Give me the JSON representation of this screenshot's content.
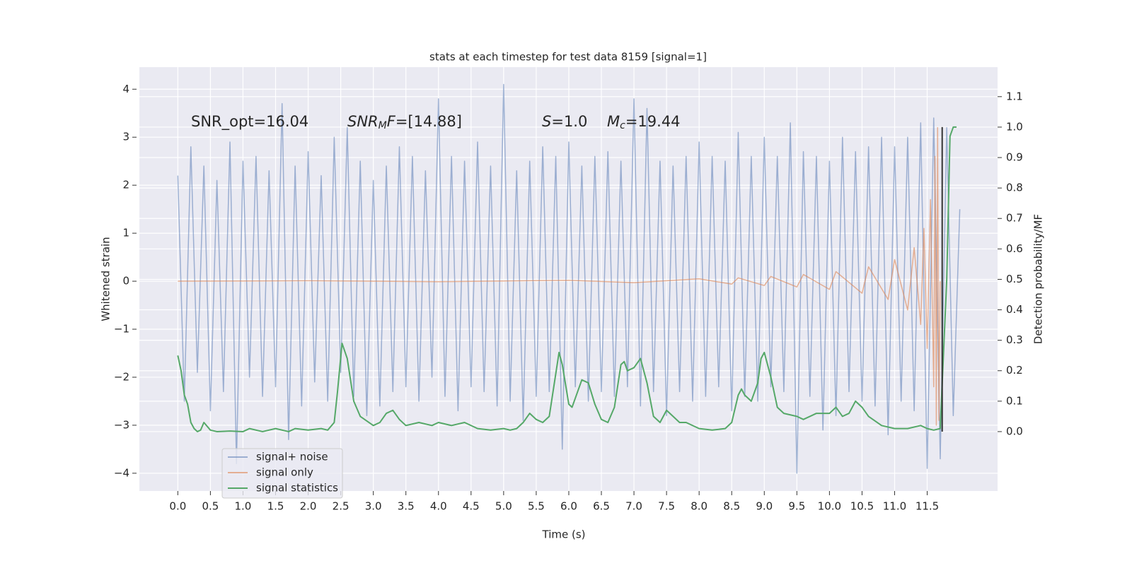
{
  "chart_data": {
    "type": "line",
    "title": "stats at each timestep for test data 8159 [signal=1]",
    "xlabel": "Time (s)",
    "ylabel": "Whitened strain",
    "y2label": "Detection probability/MF",
    "xlim": [
      -0.59,
      12.58
    ],
    "ylim": [
      -4.37,
      4.46
    ],
    "y2lim": [
      -0.195,
      1.197
    ],
    "xticks": [
      {
        "value": 0,
        "label": "0.0"
      },
      0.5,
      {
        "value": 1,
        "label": "1.0"
      },
      1.5,
      {
        "value": 2,
        "label": "2.0"
      },
      2.5,
      {
        "value": 3,
        "label": "3.0"
      },
      3.5,
      {
        "value": 4,
        "label": "4.0"
      },
      4.5,
      {
        "value": 5,
        "label": "5.0"
      },
      5.5,
      {
        "value": 6,
        "label": "6.0"
      },
      6.5,
      {
        "value": 7,
        "label": "7.0"
      },
      7.5,
      {
        "value": 8,
        "label": "8.0"
      },
      8.5,
      {
        "value": 9,
        "label": "9.0"
      },
      9.5,
      {
        "value": 10,
        "label": "10.0"
      },
      10.5,
      {
        "value": 11,
        "label": "11.0"
      },
      11.5
    ],
    "yticks": [
      {
        "value": -4,
        "label": "−4"
      },
      {
        "value": -3,
        "label": "−3"
      },
      {
        "value": -2,
        "label": "−2"
      },
      {
        "value": -1,
        "label": "−1"
      },
      0,
      1,
      2,
      3,
      4
    ],
    "y2ticks": [
      {
        "value": 0,
        "label": "0.0"
      },
      0.1,
      0.2,
      0.3,
      0.4,
      0.5,
      0.6,
      0.7,
      0.8,
      0.9,
      {
        "value": 1,
        "label": "1.0"
      },
      1.1
    ],
    "grid": true,
    "legend": "lower left",
    "annotations": [
      {
        "parts": [
          {
            "text": "SNR_opt=16.04"
          }
        ]
      },
      {
        "parts": [
          {
            "text": "SNR",
            "italic": true
          },
          {
            "text": "M",
            "italic": true,
            "sub": true
          },
          {
            "text": "F",
            "italic": true
          },
          {
            "text": "=[14.88]"
          }
        ]
      },
      {
        "parts": [
          {
            "text": "S",
            "italic": true
          },
          {
            "text": "=1.0"
          }
        ]
      },
      {
        "parts": [
          {
            "text": "M",
            "italic": true
          },
          {
            "text": "c",
            "italic": true,
            "sub": true
          },
          {
            "text": "=19.44"
          }
        ]
      }
    ],
    "vline": {
      "x": 11.73,
      "ymin": 0,
      "ymax": 1,
      "axis": "y2",
      "color": "#333333"
    },
    "series": [
      {
        "name": "signal+ noise",
        "color": "#4c72b0",
        "opacity": 0.5,
        "x": [
          0,
          0.1,
          0.2,
          0.3,
          0.4,
          0.5,
          0.6,
          0.7,
          0.8,
          0.9,
          1,
          1.1,
          1.2,
          1.3,
          1.4,
          1.5,
          1.6,
          1.7,
          1.8,
          1.9,
          2,
          2.1,
          2.2,
          2.3,
          2.4,
          2.5,
          2.6,
          2.7,
          2.8,
          2.9,
          3,
          3.1,
          3.2,
          3.3,
          3.4,
          3.5,
          3.6,
          3.7,
          3.8,
          3.9,
          4,
          4.1,
          4.2,
          4.3,
          4.4,
          4.5,
          4.6,
          4.7,
          4.8,
          4.9,
          5,
          5.1,
          5.2,
          5.3,
          5.4,
          5.5,
          5.6,
          5.7,
          5.8,
          5.9,
          6,
          6.1,
          6.2,
          6.3,
          6.4,
          6.5,
          6.6,
          6.7,
          6.8,
          6.9,
          7,
          7.1,
          7.2,
          7.3,
          7.4,
          7.5,
          7.6,
          7.7,
          7.8,
          7.9,
          8,
          8.1,
          8.2,
          8.3,
          8.4,
          8.5,
          8.6,
          8.7,
          8.8,
          8.9,
          9,
          9.1,
          9.2,
          9.3,
          9.4,
          9.5,
          9.6,
          9.7,
          9.8,
          9.9,
          10,
          10.1,
          10.2,
          10.3,
          10.4,
          10.5,
          10.6,
          10.7,
          10.8,
          10.9,
          11,
          11.1,
          11.2,
          11.3,
          11.4,
          11.5,
          11.6,
          11.7,
          11.8,
          11.9,
          12
        ],
        "values": [
          2.2,
          -2.5,
          2.8,
          -1.9,
          2.4,
          -2.7,
          2.1,
          -2.3,
          2.9,
          -3.8,
          2.5,
          -2.0,
          2.6,
          -2.4,
          2.3,
          -2.2,
          3.7,
          -3.3,
          2.4,
          -2.6,
          2.7,
          -2.1,
          2.2,
          -2.5,
          3.0,
          -1.9,
          3.2,
          -2.4,
          2.5,
          -2.8,
          2.1,
          -2.6,
          2.4,
          -2.3,
          2.8,
          -2.2,
          2.6,
          -2.5,
          2.3,
          -2.0,
          3.8,
          -2.4,
          2.6,
          -2.7,
          2.5,
          -2.2,
          2.9,
          -2.3,
          2.4,
          -2.6,
          4.1,
          -2.5,
          2.3,
          -2.9,
          2.5,
          -2.4,
          2.8,
          -2.3,
          2.6,
          -3.5,
          2.9,
          -2.2,
          2.4,
          -2.5,
          2.6,
          -2.3,
          2.7,
          -2.4,
          2.5,
          -2.2,
          3.8,
          -2.6,
          3.6,
          -2.3,
          2.5,
          -2.8,
          2.4,
          -2.3,
          2.6,
          -2.5,
          2.9,
          -2.4,
          2.6,
          -2.2,
          2.5,
          -2.7,
          3.1,
          -2.4,
          2.6,
          -2.5,
          3.0,
          -2.2,
          2.6,
          -2.3,
          3.3,
          -4.0,
          2.7,
          -2.4,
          2.6,
          -3.1,
          2.5,
          -2.8,
          3.0,
          -2.3,
          2.7,
          -2.5,
          2.8,
          -2.6,
          3.0,
          -3.2,
          2.8,
          -2.5,
          3.0,
          -2.7,
          3.3,
          -3.9,
          3.4,
          -3.7,
          3.2,
          -2.8,
          1.5
        ]
      },
      {
        "name": "signal only",
        "color": "#dd8452",
        "opacity": 0.6,
        "x": [
          0,
          2,
          4,
          6,
          7,
          8,
          8.5,
          8.6,
          9.0,
          9.1,
          9.5,
          9.6,
          10.0,
          10.1,
          10.5,
          10.6,
          10.9,
          11.0,
          11.2,
          11.3,
          11.4,
          11.45,
          11.5,
          11.55,
          11.6,
          11.62,
          11.64,
          11.66,
          11.68,
          11.7
        ],
        "values": [
          0,
          0.01,
          -0.01,
          0.02,
          -0.03,
          0.05,
          -0.06,
          0.07,
          -0.09,
          0.1,
          -0.12,
          0.14,
          -0.17,
          0.2,
          -0.25,
          0.3,
          -0.38,
          0.45,
          -0.6,
          0.7,
          -0.9,
          1.1,
          -1.4,
          1.7,
          -2.2,
          2.6,
          -3.0,
          3.2,
          -2.9,
          0.0
        ]
      },
      {
        "name": "signal statistics",
        "color": "#55a868",
        "opacity": 1,
        "axis": "y2",
        "x": [
          0.0,
          0.05,
          0.1,
          0.15,
          0.2,
          0.25,
          0.3,
          0.35,
          0.4,
          0.5,
          0.6,
          0.8,
          1.0,
          1.1,
          1.3,
          1.5,
          1.7,
          1.8,
          2.0,
          2.2,
          2.3,
          2.4,
          2.45,
          2.52,
          2.6,
          2.7,
          2.8,
          3.0,
          3.1,
          3.2,
          3.3,
          3.4,
          3.5,
          3.7,
          3.9,
          4.0,
          4.2,
          4.4,
          4.6,
          4.8,
          5.0,
          5.1,
          5.2,
          5.3,
          5.4,
          5.5,
          5.6,
          5.7,
          5.8,
          5.85,
          5.9,
          6.0,
          6.05,
          6.1,
          6.2,
          6.3,
          6.4,
          6.5,
          6.6,
          6.7,
          6.8,
          6.85,
          6.9,
          7.0,
          7.1,
          7.2,
          7.3,
          7.4,
          7.5,
          7.6,
          7.7,
          7.8,
          8.0,
          8.2,
          8.4,
          8.5,
          8.6,
          8.65,
          8.7,
          8.8,
          8.9,
          8.95,
          9.0,
          9.1,
          9.2,
          9.3,
          9.5,
          9.6,
          9.8,
          10.0,
          10.1,
          10.2,
          10.3,
          10.4,
          10.5,
          10.6,
          10.8,
          11.0,
          11.2,
          11.4,
          11.5,
          11.6,
          11.7,
          11.8,
          11.85,
          11.9,
          11.95
        ],
        "values": [
          0.25,
          0.2,
          0.12,
          0.09,
          0.03,
          0.01,
          0.0,
          0.005,
          0.03,
          0.005,
          0.0,
          0.002,
          0.0,
          0.01,
          0.0,
          0.01,
          0.0,
          0.01,
          0.005,
          0.01,
          0.005,
          0.03,
          0.13,
          0.29,
          0.24,
          0.1,
          0.05,
          0.02,
          0.03,
          0.06,
          0.07,
          0.04,
          0.02,
          0.03,
          0.02,
          0.03,
          0.02,
          0.03,
          0.01,
          0.005,
          0.01,
          0.005,
          0.01,
          0.03,
          0.06,
          0.04,
          0.03,
          0.05,
          0.19,
          0.26,
          0.22,
          0.09,
          0.08,
          0.11,
          0.17,
          0.16,
          0.09,
          0.04,
          0.03,
          0.08,
          0.22,
          0.23,
          0.2,
          0.21,
          0.24,
          0.16,
          0.05,
          0.03,
          0.07,
          0.05,
          0.03,
          0.03,
          0.01,
          0.005,
          0.01,
          0.03,
          0.12,
          0.14,
          0.12,
          0.1,
          0.16,
          0.24,
          0.26,
          0.18,
          0.08,
          0.06,
          0.05,
          0.04,
          0.06,
          0.06,
          0.08,
          0.05,
          0.06,
          0.1,
          0.08,
          0.05,
          0.02,
          0.01,
          0.01,
          0.02,
          0.01,
          0.005,
          0.01,
          0.5,
          0.97,
          1.0,
          1.0
        ]
      }
    ]
  }
}
